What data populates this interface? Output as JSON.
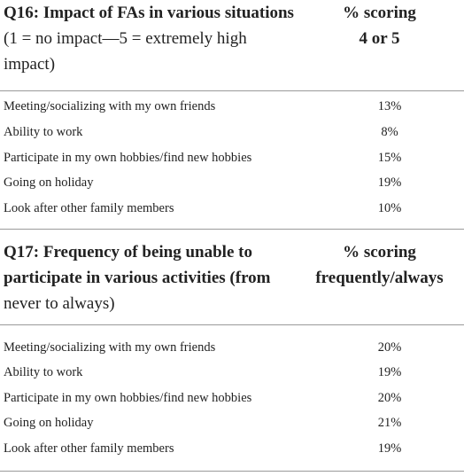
{
  "sections": [
    {
      "q_id": "Q16:",
      "title_line1_rest": "Impact of FAs in various situations",
      "title_line2": "(1 = no impact—5 = extremely high",
      "title_line3": "impact)",
      "col_line1": "% scoring",
      "col_line2": "4 or 5",
      "rows": [
        {
          "label": "Meeting/socializing with my own friends",
          "value": "13%"
        },
        {
          "label": "Ability to work",
          "value": "8%"
        },
        {
          "label": "Participate in my own hobbies/find new hobbies",
          "value": "15%"
        },
        {
          "label": "Going on holiday",
          "value": "19%"
        },
        {
          "label": "Look after other family members",
          "value": "10%"
        }
      ]
    },
    {
      "title_line1": "Q17: Frequency of being unable to",
      "title_line2": "participate in various activities (from",
      "title_line3_rest": "never to always)",
      "col_line1": "% scoring",
      "col_line2": "frequently/always",
      "rows": [
        {
          "label": "Meeting/socializing with my own friends",
          "value": "20%"
        },
        {
          "label": "Ability to work",
          "value": "19%"
        },
        {
          "label": "Participate in my own hobbies/find new hobbies",
          "value": "20%"
        },
        {
          "label": "Going on holiday",
          "value": "21%"
        },
        {
          "label": "Look after other family members",
          "value": "19%"
        }
      ]
    }
  ]
}
